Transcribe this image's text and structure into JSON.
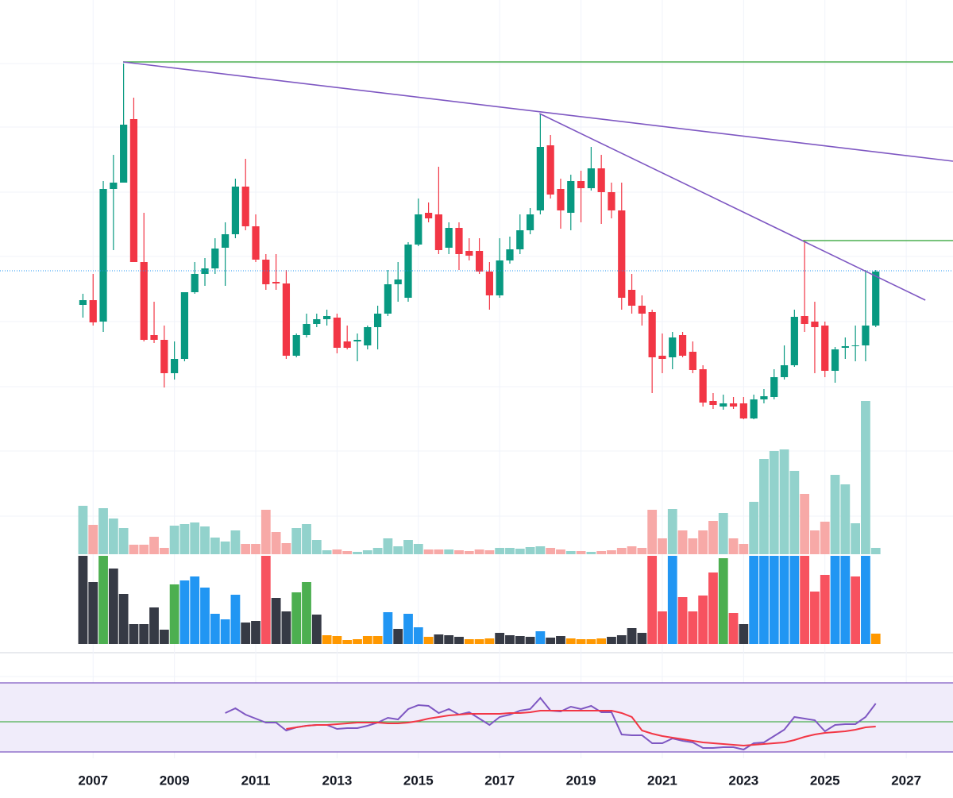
{
  "chart_data": {
    "type": "candlestick",
    "x": [
      2006.75,
      2007,
      2007.25,
      2007.5,
      2007.75,
      2008,
      2008.25,
      2008.5,
      2008.75,
      2009,
      2009.25,
      2009.5,
      2009.75,
      2010,
      2010.25,
      2010.5,
      2010.75,
      2011,
      2011.25,
      2011.5,
      2011.75,
      2012,
      2012.25,
      2012.5,
      2012.75,
      2013,
      2013.25,
      2013.5,
      2013.75,
      2014,
      2014.25,
      2014.5,
      2014.75,
      2015,
      2015.25,
      2015.5,
      2015.75,
      2016,
      2016.25,
      2016.5,
      2016.75,
      2017,
      2017.25,
      2017.5,
      2017.75,
      2018,
      2018.25,
      2018.5,
      2018.75,
      2019,
      2019.25,
      2019.5,
      2019.75,
      2020,
      2020.25,
      2020.5,
      2020.75,
      2021,
      2021.25,
      2021.5,
      2021.75,
      2022,
      2022.25,
      2022.5,
      2022.75,
      2023,
      2023.25,
      2023.5,
      2023.75,
      2024,
      2024.25,
      2024.5,
      2024.75,
      2025,
      2025.25,
      2025.5,
      2025.75,
      2026,
      2026.25
    ],
    "xlim": [
      2004.71,
      2028.15
    ],
    "xticks": [
      2007,
      2009,
      2011,
      2013,
      2015,
      2017,
      2019,
      2021,
      2023,
      2025,
      2027
    ],
    "open": [
      216,
      222,
      195,
      362,
      370,
      450,
      270,
      178,
      172,
      130,
      148,
      232,
      255,
      262,
      288,
      305,
      365,
      315,
      273,
      245,
      243,
      152,
      178,
      192,
      198,
      200,
      170,
      170,
      165,
      188,
      205,
      242,
      225,
      292,
      332,
      330,
      288,
      313,
      284,
      284,
      258,
      228,
      272,
      286,
      310,
      335,
      417,
      362,
      332,
      372,
      363,
      388,
      358,
      335,
      235,
      215,
      207,
      152,
      150,
      178,
      157,
      135,
      95,
      88,
      92,
      92,
      73,
      97,
      100,
      125,
      140,
      202,
      195,
      190,
      133,
      162,
      164,
      165,
      190
    ],
    "high": [
      230,
      255,
      372,
      405,
      520,
      477,
      332,
      220,
      190,
      170,
      230,
      270,
      275,
      300,
      320,
      375,
      400,
      330,
      280,
      280,
      260,
      180,
      205,
      205,
      210,
      205,
      190,
      180,
      190,
      215,
      260,
      270,
      295,
      350,
      345,
      390,
      320,
      320,
      300,
      300,
      270,
      300,
      302,
      330,
      338,
      457,
      430,
      375,
      380,
      385,
      415,
      405,
      370,
      370,
      255,
      228,
      210,
      180,
      182,
      182,
      170,
      140,
      105,
      103,
      100,
      100,
      103,
      110,
      135,
      165,
      210,
      298,
      220,
      195,
      163,
      175,
      190,
      260,
      260
    ],
    "low": [
      200,
      190,
      182,
      285,
      370,
      270,
      170,
      168,
      112,
      122,
      145,
      230,
      240,
      255,
      240,
      300,
      310,
      270,
      235,
      235,
      148,
      150,
      175,
      188,
      190,
      155,
      160,
      145,
      160,
      160,
      202,
      220,
      220,
      290,
      320,
      280,
      280,
      260,
      272,
      255,
      210,
      225,
      268,
      280,
      305,
      330,
      350,
      312,
      310,
      320,
      360,
      318,
      325,
      210,
      205,
      190,
      105,
      130,
      135,
      150,
      130,
      88,
      85,
      84,
      85,
      72,
      72,
      92,
      97,
      122,
      138,
      182,
      130,
      125,
      118,
      148,
      145,
      145,
      188
    ],
    "close": [
      222,
      194,
      362,
      370,
      443,
      270,
      172,
      172,
      130,
      148,
      232,
      255,
      262,
      287,
      305,
      365,
      315,
      273,
      242,
      243,
      152,
      178,
      192,
      198,
      202,
      162,
      162,
      172,
      188,
      205,
      242,
      248,
      292,
      330,
      325,
      285,
      313,
      280,
      278,
      258,
      228,
      272,
      286,
      310,
      330,
      415,
      355,
      335,
      372,
      363,
      388,
      358,
      335,
      225,
      215,
      205,
      150,
      148,
      175,
      152,
      134,
      93,
      90,
      92,
      88,
      73,
      97,
      101,
      125,
      140,
      201,
      192,
      188,
      133,
      160,
      164,
      165,
      190,
      258
    ],
    "up_color": "#089981",
    "down_color": "#f23645",
    "ylim": [
      -100,
      600
    ],
    "ygrid": [
      520,
      440,
      358,
      277,
      195,
      113,
      32,
      -50
    ],
    "grid": true,
    "trendlines": [
      {
        "x": [
          2007.74,
          2028.15
        ],
        "y": [
          522,
          522
        ],
        "color": "#4caf50"
      },
      {
        "x": [
          2007.74,
          2028.15
        ],
        "y": [
          522,
          397
        ],
        "color": "#7e57c2"
      },
      {
        "x": [
          2017.98,
          2027.47
        ],
        "y": [
          457,
          222
        ],
        "color": "#7e57c2"
      },
      {
        "x": [
          2024.46,
          2028.15
        ],
        "y": [
          297,
          297
        ],
        "color": "#4caf50"
      }
    ],
    "price_line": {
      "value": 259,
      "color": "#2196f3"
    },
    "panes": [
      {
        "type": "bar",
        "ylim": [
          0,
          198
        ],
        "up_color": "#92d2cc",
        "down_color": "#f7a9a7",
        "values": [
          61,
          37,
          58,
          45,
          33,
          12,
          12,
          22,
          8,
          36,
          38,
          40,
          35,
          21,
          16,
          30,
          13,
          13,
          56,
          28,
          14,
          33,
          38,
          18,
          5,
          6,
          4,
          3,
          5,
          8,
          20,
          10,
          18,
          13,
          6,
          6,
          6,
          5,
          4,
          6,
          5,
          8,
          8,
          7,
          9,
          10,
          8,
          6,
          4,
          4,
          3,
          4,
          5,
          8,
          10,
          8,
          56,
          20,
          57,
          30,
          20,
          30,
          42,
          52,
          20,
          13,
          66,
          120,
          130,
          132,
          105,
          76,
          30,
          41,
          100,
          88,
          39,
          193,
          8
        ]
      },
      {
        "type": "bar",
        "ylim": [
          0,
          111
        ],
        "values": [
          111,
          78,
          111,
          95,
          63,
          25,
          25,
          46,
          18,
          75,
          80,
          85,
          71,
          38,
          31,
          62,
          27,
          29,
          111,
          58,
          41,
          65,
          78,
          37,
          11,
          10,
          5,
          6,
          10,
          10,
          40,
          19,
          38,
          21,
          9,
          12,
          11,
          9,
          6,
          6,
          7,
          14,
          11,
          10,
          9,
          16,
          8,
          10,
          7,
          6,
          6,
          7,
          9,
          11,
          20,
          14,
          111,
          41,
          111,
          59,
          41,
          61,
          90,
          108,
          39,
          25,
          111,
          111,
          111,
          111,
          111,
          111,
          66,
          87,
          111,
          111,
          85,
          111,
          13
        ],
        "colors": [
          "#363a45",
          "#363a45",
          "#4caf50",
          "#363a45",
          "#363a45",
          "#363a45",
          "#363a45",
          "#363a45",
          "#363a45",
          "#4caf50",
          "#2196f3",
          "#2196f3",
          "#2196f3",
          "#2196f3",
          "#2196f3",
          "#2196f3",
          "#363a45",
          "#363a45",
          "#f7525f",
          "#363a45",
          "#363a45",
          "#4caf50",
          "#4caf50",
          "#363a45",
          "#ff9800",
          "#ff9800",
          "#ff9800",
          "#ff9800",
          "#ff9800",
          "#ff9800",
          "#2196f3",
          "#363a45",
          "#2196f3",
          "#2196f3",
          "#ff9800",
          "#363a45",
          "#363a45",
          "#363a45",
          "#ff9800",
          "#ff9800",
          "#ff9800",
          "#363a45",
          "#363a45",
          "#363a45",
          "#363a45",
          "#2196f3",
          "#363a45",
          "#363a45",
          "#ff9800",
          "#ff9800",
          "#ff9800",
          "#ff9800",
          "#363a45",
          "#363a45",
          "#363a45",
          "#363a45",
          "#f7525f",
          "#f7525f",
          "#2196f3",
          "#f7525f",
          "#f7525f",
          "#f7525f",
          "#f7525f",
          "#4caf50",
          "#f7525f",
          "#363a45",
          "#2196f3",
          "#2196f3",
          "#2196f3",
          "#2196f3",
          "#2196f3",
          "#f7525f",
          "#f7525f",
          "#f7525f",
          "#2196f3",
          "#2196f3",
          "#f7525f",
          "#2196f3",
          "#ff9800"
        ]
      },
      {
        "type": "line",
        "ylim": [
          5,
          108
        ],
        "bands": [
          100,
          13
        ],
        "band_color": "#7e57c2",
        "band_fill": "#f0ecfa",
        "midline": 51,
        "midline_color": "#4caf50",
        "series": [
          {
            "color": "#7e57c2",
            "values": [
              null,
              null,
              null,
              null,
              null,
              null,
              null,
              null,
              null,
              null,
              null,
              null,
              null,
              null,
              62,
              68,
              60,
              55,
              50,
              50,
              40,
              44,
              46,
              47,
              47,
              42,
              43,
              43,
              46,
              50,
              56,
              54,
              67,
              72,
              71,
              62,
              67,
              60,
              63,
              55,
              47,
              57,
              60,
              65,
              67,
              81,
              65,
              64,
              70,
              67,
              71,
              63,
              63,
              35,
              34,
              34,
              24,
              24,
              30,
              27,
              25,
              18,
              18,
              19,
              19,
              16,
              24,
              25,
              33,
              41,
              57,
              55,
              53,
              39,
              47,
              48,
              48,
              57,
              74
            ]
          },
          {
            "color": "#f23645",
            "values": [
              null,
              null,
              null,
              null,
              null,
              null,
              null,
              null,
              null,
              null,
              null,
              null,
              null,
              null,
              null,
              null,
              null,
              null,
              null,
              null,
              42,
              44,
              46,
              47,
              47,
              48,
              49,
              50,
              50,
              50,
              49,
              49,
              50,
              52,
              55,
              57,
              59,
              60,
              61,
              61,
              61,
              61,
              62,
              62,
              63,
              65,
              65,
              65,
              65,
              65,
              65,
              65,
              65,
              62,
              57,
              40,
              36,
              33,
              31,
              29,
              27,
              25,
              24,
              23,
              22,
              21,
              22,
              23,
              24,
              25,
              28,
              32,
              35,
              37,
              38,
              39,
              41,
              44,
              45
            ]
          }
        ]
      }
    ]
  }
}
